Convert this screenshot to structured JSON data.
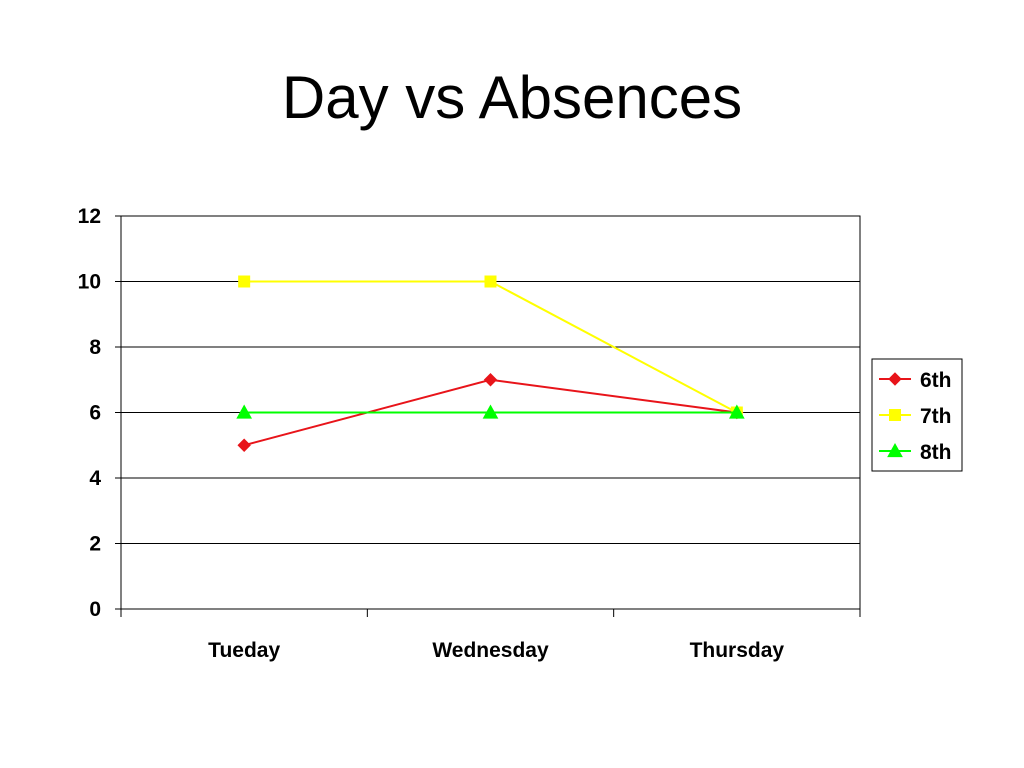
{
  "chart_data": {
    "type": "line",
    "title": "Day vs Absences",
    "xlabel": "",
    "ylabel": "",
    "categories": [
      "Tueday",
      "Wednesday",
      "Thursday"
    ],
    "ylim": [
      0,
      12
    ],
    "yticks": [
      0,
      2,
      4,
      6,
      8,
      10,
      12
    ],
    "grid": true,
    "legend_position": "right",
    "series": [
      {
        "name": "6th",
        "values": [
          5,
          7,
          6
        ],
        "color": "#e8141a",
        "marker": "diamond"
      },
      {
        "name": "7th",
        "values": [
          10,
          10,
          6
        ],
        "color": "#ffff00",
        "marker": "square"
      },
      {
        "name": "8th",
        "values": [
          6,
          6,
          6
        ],
        "color": "#00ff00",
        "marker": "triangle"
      }
    ]
  }
}
